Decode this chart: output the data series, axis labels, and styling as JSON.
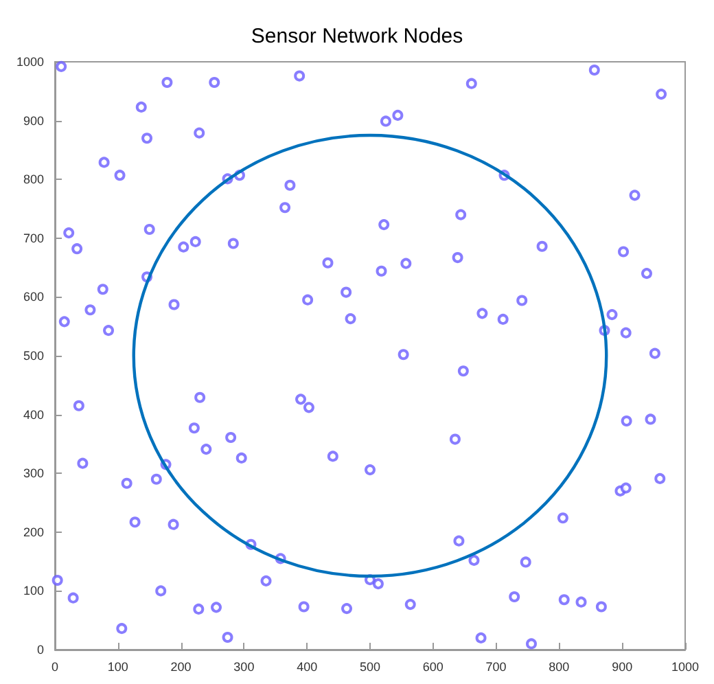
{
  "chart_data": {
    "type": "scatter",
    "title": "Sensor Network Nodes",
    "xlim": [
      0,
      1000
    ],
    "ylim": [
      0,
      1000
    ],
    "xticks": [
      0,
      100,
      200,
      300,
      400,
      500,
      600,
      700,
      800,
      900,
      1000
    ],
    "yticks": [
      0,
      100,
      200,
      300,
      400,
      500,
      600,
      700,
      800,
      900,
      1000
    ],
    "grid": false,
    "series": [
      {
        "color": "#6a5cff",
        "marker": "circle",
        "x": [
          10,
          137,
          178,
          253,
          388,
          146,
          229,
          78,
          103,
          274,
          293,
          373,
          365,
          22,
          35,
          150,
          204,
          223,
          283,
          433,
          146,
          76,
          56,
          189,
          85,
          15,
          401,
          462,
          469,
          856,
          962,
          661,
          525,
          544,
          713,
          920,
          644,
          522,
          773,
          902,
          939,
          639,
          518,
          557,
          741,
          678,
          711,
          884,
          872,
          906,
          952,
          553,
          38,
          44,
          114,
          127,
          161,
          176,
          188,
          230,
          221,
          240,
          279,
          296,
          311,
          358,
          335,
          390,
          403,
          441,
          4,
          29,
          168,
          106,
          228,
          256,
          274,
          395,
          463,
          648,
          635,
          500,
          907,
          945,
          960,
          897,
          906,
          806,
          641,
          665,
          747,
          500,
          513,
          564,
          729,
          808,
          835,
          867,
          676,
          756
        ],
        "values": [
          992,
          923,
          965,
          965,
          976,
          870,
          879,
          829,
          807,
          801,
          807,
          790,
          752,
          709,
          682,
          715,
          685,
          694,
          691,
          658,
          634,
          613,
          578,
          587,
          543,
          558,
          595,
          608,
          563,
          986,
          945,
          963,
          899,
          909,
          807,
          773,
          740,
          723,
          686,
          677,
          640,
          667,
          644,
          657,
          594,
          572,
          562,
          570,
          543,
          539,
          504,
          502,
          415,
          317,
          283,
          217,
          290,
          315,
          213,
          429,
          377,
          341,
          361,
          326,
          179,
          155,
          117,
          426,
          412,
          329,
          118,
          88,
          100,
          36,
          69,
          72,
          21,
          73,
          70,
          474,
          358,
          306,
          389,
          392,
          291,
          270,
          275,
          224,
          185,
          152,
          149,
          119,
          112,
          77,
          90,
          85,
          81,
          73,
          20,
          10
        ]
      }
    ]
  }
}
